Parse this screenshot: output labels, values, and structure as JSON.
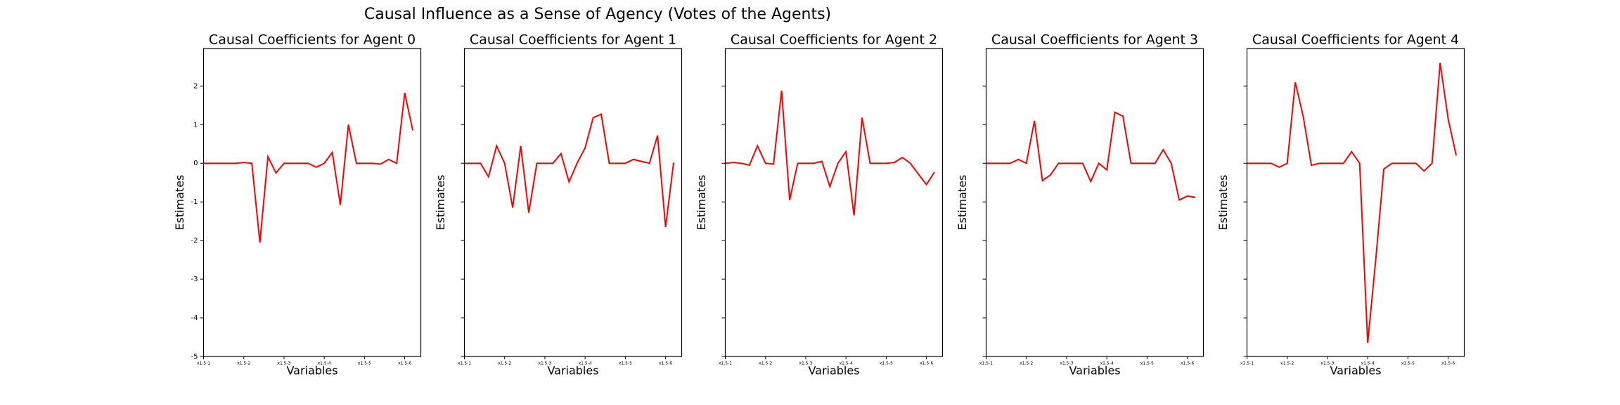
{
  "title": "Causal Influence as a Sense of Agency (Votes of the Agents)",
  "chart_data": [
    {
      "type": "line",
      "title": "Causal Coefficients for Agent 0",
      "x_label": "Variables",
      "y_label": "Estimates",
      "color": "#ff0000",
      "x": [
        0,
        1,
        2,
        3,
        4,
        5,
        6,
        7,
        8,
        9,
        10,
        11,
        12,
        13,
        14,
        15,
        16,
        17,
        18,
        19,
        20,
        21,
        22,
        23,
        24,
        25,
        26
      ],
      "values": [
        0,
        0,
        0,
        0,
        0,
        0.02,
        0,
        -2.05,
        0.17,
        -0.25,
        0,
        0,
        0,
        0,
        -0.1,
        0,
        0.28,
        -1.08,
        1.0,
        0,
        0,
        0,
        -0.02,
        0.1,
        0,
        1.82,
        0.85
      ],
      "xlim": [
        0,
        27
      ],
      "xticks": [
        {
          "value": 0,
          "label": "x1.5-1"
        },
        {
          "value": 5,
          "label": "x1.5-2"
        },
        {
          "value": 10,
          "label": "x1.5-3"
        },
        {
          "value": 15,
          "label": "x1.5-4"
        },
        {
          "value": 20,
          "label": "x1.5-5"
        },
        {
          "value": 25,
          "label": "x1.5-6"
        }
      ],
      "ylim": [
        -5,
        2.97
      ],
      "yticks": [
        -5,
        -4,
        -3,
        -2,
        -1,
        0,
        1,
        2
      ]
    },
    {
      "type": "line",
      "title": "Causal Coefficients for Agent 1",
      "x_label": "Variables",
      "y_label": "Estimates",
      "color": "#ff0000",
      "x": [
        0,
        1,
        2,
        3,
        4,
        5,
        6,
        7,
        8,
        9,
        10,
        11,
        12,
        13,
        14,
        15,
        16,
        17,
        18,
        19,
        20,
        21,
        22,
        23,
        24,
        25,
        26
      ],
      "values": [
        0,
        0,
        0,
        -0.35,
        0.45,
        0,
        -1.15,
        0.45,
        -1.28,
        0,
        0,
        0,
        0.25,
        -0.48,
        0,
        0.4,
        1.18,
        1.27,
        0,
        0,
        0,
        0.1,
        0.05,
        0,
        0.72,
        -1.65,
        0.02
      ],
      "xlim": [
        0,
        27
      ],
      "xticks": [
        {
          "value": 0,
          "label": "x1.5-1"
        },
        {
          "value": 5,
          "label": "x1.5-2"
        },
        {
          "value": 10,
          "label": "x1.5-3"
        },
        {
          "value": 15,
          "label": "x1.5-4"
        },
        {
          "value": 20,
          "label": "x1.5-5"
        },
        {
          "value": 25,
          "label": "x1.5-6"
        }
      ],
      "ylim": [
        -5,
        2.97
      ],
      "yticks": [
        -5,
        -4,
        -3,
        -2,
        -1,
        0,
        1,
        2
      ]
    },
    {
      "type": "line",
      "title": "Causal Coefficients for Agent 2",
      "x_label": "Variables",
      "y_label": "Estimates",
      "color": "#ff0000",
      "x": [
        0,
        1,
        2,
        3,
        4,
        5,
        6,
        7,
        8,
        9,
        10,
        11,
        12,
        13,
        14,
        15,
        16,
        17,
        18,
        19,
        20,
        21,
        22,
        23,
        24,
        25,
        26
      ],
      "values": [
        0,
        0.02,
        0,
        -0.05,
        0.45,
        0,
        -0.02,
        1.88,
        -0.95,
        0,
        0,
        0,
        0.05,
        -0.6,
        0,
        0.3,
        -1.35,
        1.18,
        0,
        0,
        0,
        0.02,
        0.15,
        0,
        -0.28,
        -0.55,
        -0.23
      ],
      "xlim": [
        0,
        27
      ],
      "xticks": [
        {
          "value": 0,
          "label": "x1.5-1"
        },
        {
          "value": 5,
          "label": "x1.5-2"
        },
        {
          "value": 10,
          "label": "x1.5-3"
        },
        {
          "value": 15,
          "label": "x1.5-4"
        },
        {
          "value": 20,
          "label": "x1.5-5"
        },
        {
          "value": 25,
          "label": "x1.5-6"
        }
      ],
      "ylim": [
        -5,
        2.97
      ],
      "yticks": [
        -5,
        -4,
        -3,
        -2,
        -1,
        0,
        1,
        2
      ]
    },
    {
      "type": "line",
      "title": "Causal Coefficients for Agent 3",
      "x_label": "Variables",
      "y_label": "Estimates",
      "color": "#ff0000",
      "x": [
        0,
        1,
        2,
        3,
        4,
        5,
        6,
        7,
        8,
        9,
        10,
        11,
        12,
        13,
        14,
        15,
        16,
        17,
        18,
        19,
        20,
        21,
        22,
        23,
        24,
        25,
        26
      ],
      "values": [
        0,
        0,
        0,
        0,
        0.1,
        0,
        1.1,
        -0.45,
        -0.3,
        0,
        0,
        0,
        0,
        -0.47,
        0,
        -0.17,
        1.32,
        1.22,
        0,
        0,
        0,
        0,
        0.35,
        0,
        -0.95,
        -0.85,
        -0.88
      ],
      "xlim": [
        0,
        27
      ],
      "xticks": [
        {
          "value": 0,
          "label": "x1.5-1"
        },
        {
          "value": 5,
          "label": "x1.5-2"
        },
        {
          "value": 10,
          "label": "x1.5-3"
        },
        {
          "value": 15,
          "label": "x1.5-4"
        },
        {
          "value": 20,
          "label": "x1.5-5"
        },
        {
          "value": 25,
          "label": "x1.5-6"
        }
      ],
      "ylim": [
        -5,
        2.97
      ],
      "yticks": [
        -5,
        -4,
        -3,
        -2,
        -1,
        0,
        1,
        2
      ]
    },
    {
      "type": "line",
      "title": "Causal Coefficients for Agent 4",
      "x_label": "Variables",
      "y_label": "Estimates",
      "color": "#ff0000",
      "x": [
        0,
        1,
        2,
        3,
        4,
        5,
        6,
        7,
        8,
        9,
        10,
        11,
        12,
        13,
        14,
        15,
        16,
        17,
        18,
        19,
        20,
        21,
        22,
        23,
        24,
        25,
        26
      ],
      "values": [
        0,
        0,
        0,
        0,
        -0.1,
        0,
        2.1,
        1.2,
        -0.05,
        0,
        0,
        0,
        0,
        0.3,
        0,
        -4.65,
        -2.5,
        -0.15,
        0,
        0,
        0,
        0,
        -0.2,
        0,
        2.6,
        1.15,
        0.2
      ],
      "xlim": [
        0,
        27
      ],
      "xticks": [
        {
          "value": 0,
          "label": "x1.5-1"
        },
        {
          "value": 5,
          "label": "x1.5-2"
        },
        {
          "value": 10,
          "label": "x1.5-3"
        },
        {
          "value": 15,
          "label": "x1.5-4"
        },
        {
          "value": 20,
          "label": "x1.5-5"
        },
        {
          "value": 25,
          "label": "x1.5-6"
        }
      ],
      "ylim": [
        -5,
        2.97
      ],
      "yticks": [
        -5,
        -4,
        -3,
        -2,
        -1,
        0,
        1,
        2
      ]
    }
  ]
}
